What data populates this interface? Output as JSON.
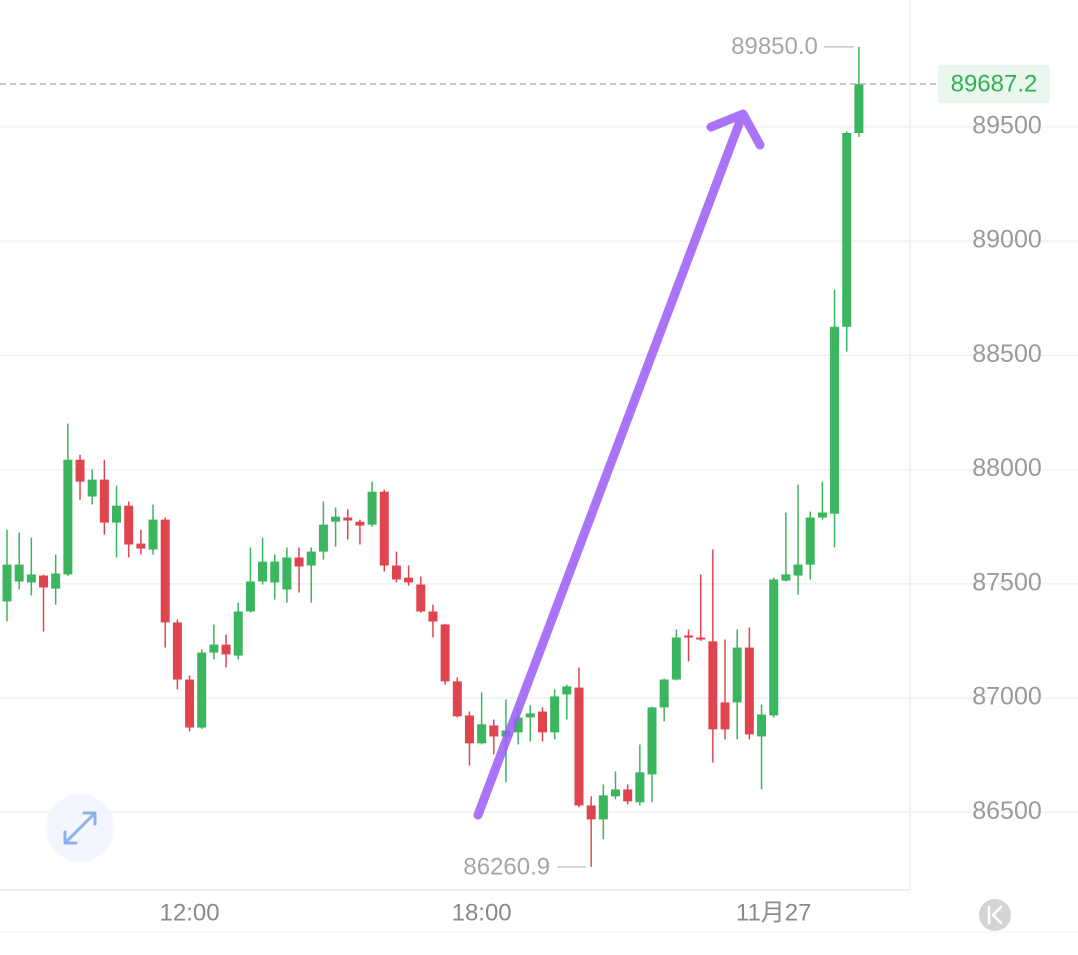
{
  "chart_data": {
    "type": "candlestick",
    "categories": [
      null,
      null,
      null,
      null,
      null,
      null,
      null,
      null,
      null,
      null,
      null,
      null,
      null,
      null,
      null,
      "12:00",
      null,
      null,
      null,
      null,
      null,
      null,
      null,
      null,
      null,
      null,
      null,
      null,
      null,
      null,
      null,
      null,
      null,
      null,
      null,
      null,
      null,
      null,
      null,
      "18:00",
      null,
      null,
      null,
      null,
      null,
      null,
      null,
      null,
      null,
      null,
      null,
      null,
      null,
      null,
      null,
      null,
      null,
      null,
      null,
      null,
      null,
      null,
      null,
      "11月27",
      null,
      null,
      null,
      null,
      null,
      null,
      null
    ],
    "open": [
      87423,
      87510,
      87506,
      87536,
      87479,
      87541,
      88043,
      87882,
      87956,
      87768,
      87842,
      87676,
      87650,
      87781,
      87331,
      87081,
      86871,
      87199,
      87234,
      87186,
      87379,
      87510,
      87506,
      87475,
      87615,
      87580,
      87641,
      87772,
      87790,
      87772,
      87759,
      87903,
      87580,
      87527,
      87497,
      87379,
      87322,
      87073,
      86924,
      86802,
      86880,
      86832,
      86850,
      86915,
      86941,
      86850,
      87016,
      87046,
      86530,
      86469,
      86570,
      86600,
      86544,
      86666,
      86959,
      87081,
      87274,
      87265,
      87248,
      86981,
      86981,
      87221,
      86832,
      86924,
      87514,
      87536,
      87584,
      87790,
      87807,
      88625,
      89473
    ],
    "high": [
      87737,
      87724,
      87702,
      87540,
      87628,
      88201,
      88065,
      88000,
      88043,
      87930,
      87860,
      87737,
      87847,
      87790,
      87344,
      87099,
      87213,
      87322,
      87278,
      87418,
      87659,
      87702,
      87628,
      87659,
      87659,
      87659,
      87860,
      87834,
      87825,
      87781,
      87947,
      87912,
      87641,
      87580,
      87532,
      87409,
      87325,
      87090,
      86941,
      87025,
      86906,
      86994,
      86959,
      86968,
      86959,
      87038,
      87059,
      87134,
      86570,
      86622,
      86679,
      86622,
      86797,
      86962,
      87085,
      87300,
      87300,
      87541,
      87650,
      87256,
      87300,
      87309,
      86972,
      87527,
      87812,
      87934,
      87816,
      87947,
      88787,
      89480,
      89850
    ],
    "low": [
      87335,
      87475,
      87449,
      87291,
      87409,
      87535,
      87868,
      87847,
      87715,
      87615,
      87615,
      87628,
      87628,
      87221,
      87038,
      86854,
      86865,
      87169,
      87134,
      87169,
      87375,
      87497,
      87431,
      87418,
      87462,
      87418,
      87606,
      87663,
      87694,
      87672,
      87750,
      87554,
      87506,
      87492,
      87374,
      87265,
      87059,
      86915,
      86705,
      86797,
      86753,
      86631,
      86797,
      86810,
      86810,
      86819,
      86906,
      86522,
      86260.9,
      86382,
      86557,
      86535,
      86530,
      86544,
      86898,
      87077,
      87160,
      87250,
      86718,
      86819,
      86819,
      86819,
      86600,
      86915,
      87510,
      87453,
      87519,
      87781,
      87659,
      88516,
      89456
    ],
    "close": [
      87584,
      87584,
      87541,
      87484,
      87545,
      88043,
      87947,
      87956,
      87768,
      87842,
      87672,
      87654,
      87781,
      87331,
      87081,
      86871,
      87199,
      87234,
      87191,
      87379,
      87510,
      87597,
      87597,
      87615,
      87576,
      87641,
      87759,
      87794,
      87777,
      87755,
      87903,
      87580,
      87519,
      87506,
      87379,
      87335,
      87073,
      86920,
      86802,
      86885,
      86832,
      86858,
      86915,
      86933,
      86850,
      87007,
      87051,
      86530,
      86469,
      86574,
      86600,
      86548,
      86675,
      86959,
      87081,
      87265,
      87265,
      87256,
      86863,
      86863,
      87221,
      86841,
      86928,
      87519,
      87541,
      87584,
      87790,
      87812,
      88625,
      89473,
      89687.2
    ],
    "up_color": "#3bb55e",
    "down_color": "#e0454f",
    "ylim": [
      86160,
      90055
    ],
    "yticks": [
      86500,
      87000,
      87500,
      88000,
      88500,
      89000,
      89500
    ],
    "grid": true,
    "high_label": "89850.0",
    "low_label": "86260.9",
    "last_price_label": "89687.2"
  }
}
